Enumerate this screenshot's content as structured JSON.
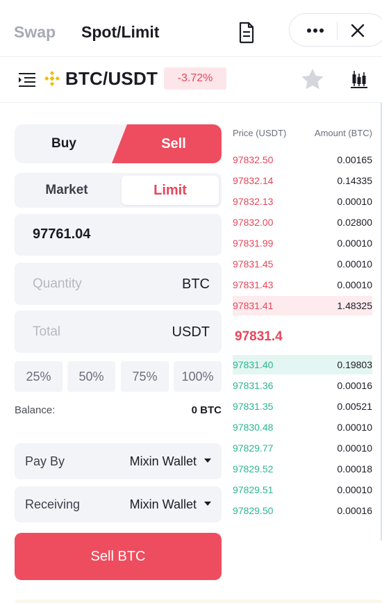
{
  "header": {
    "tab_swap": "Swap",
    "tab_spot": "Spot/Limit",
    "icons": [
      "document-icon",
      "more-icon",
      "close-icon"
    ]
  },
  "pair": {
    "name": "BTC/USDT",
    "change": "-3.72%",
    "change_color": "#e8455a",
    "icons": [
      "menu-icon",
      "binance-coin-icon",
      "star-icon",
      "candlestick-chart-icon"
    ]
  },
  "side": {
    "buy": "Buy",
    "sell": "Sell",
    "selected": "Sell"
  },
  "order_type": {
    "market": "Market",
    "limit": "Limit",
    "selected": "Limit"
  },
  "form": {
    "price_value": "97761.04",
    "quantity_placeholder": "Quantity",
    "quantity_unit": "BTC",
    "total_placeholder": "Total",
    "total_unit": "USDT"
  },
  "percentages": [
    "25%",
    "50%",
    "75%",
    "100%"
  ],
  "balance": {
    "label": "Balance:",
    "value": "0 BTC"
  },
  "pay_by": {
    "label": "Pay By",
    "value": "Mixin Wallet"
  },
  "receiving": {
    "label": "Receiving",
    "value": "Mixin Wallet"
  },
  "submit": "Sell BTC",
  "colors": {
    "accent_sell": "#ee4d5f",
    "ask": "#e8455a",
    "bid": "#2bb592"
  },
  "orderbook": {
    "header_price": "Price (USDT)",
    "header_amount": "Amount (BTC)",
    "asks": [
      {
        "price": "97832.50",
        "amount": "0.00165"
      },
      {
        "price": "97832.14",
        "amount": "0.14335"
      },
      {
        "price": "97832.13",
        "amount": "0.00010"
      },
      {
        "price": "97832.00",
        "amount": "0.02800"
      },
      {
        "price": "97831.99",
        "amount": "0.00010"
      },
      {
        "price": "97831.45",
        "amount": "0.00010"
      },
      {
        "price": "97831.43",
        "amount": "0.00010"
      },
      {
        "price": "97831.41",
        "amount": "1.48325"
      }
    ],
    "mid_price": "97831.4",
    "bids": [
      {
        "price": "97831.40",
        "amount": "0.19803"
      },
      {
        "price": "97831.36",
        "amount": "0.00016"
      },
      {
        "price": "97831.35",
        "amount": "0.00521"
      },
      {
        "price": "97830.48",
        "amount": "0.00010"
      },
      {
        "price": "97829.77",
        "amount": "0.00010"
      },
      {
        "price": "97829.52",
        "amount": "0.00018"
      },
      {
        "price": "97829.51",
        "amount": "0.00010"
      },
      {
        "price": "97829.50",
        "amount": "0.00016"
      }
    ]
  }
}
